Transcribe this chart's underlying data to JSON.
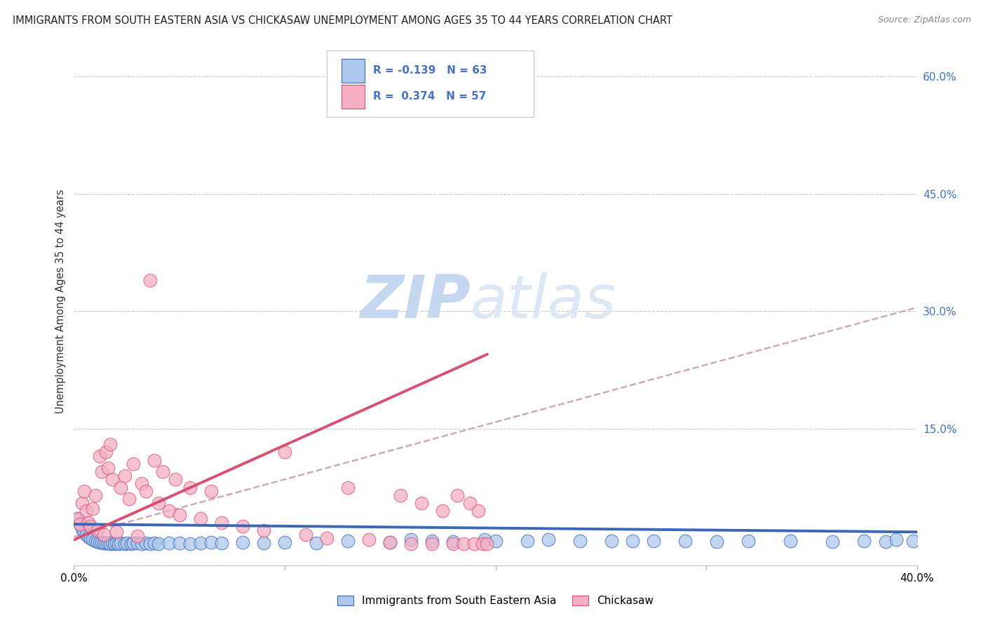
{
  "title": "IMMIGRANTS FROM SOUTH EASTERN ASIA VS CHICKASAW UNEMPLOYMENT AMONG AGES 35 TO 44 YEARS CORRELATION CHART",
  "source": "Source: ZipAtlas.com",
  "ylabel": "Unemployment Among Ages 35 to 44 years",
  "legend_label1": "Immigrants from South Eastern Asia",
  "legend_label2": "Chickasaw",
  "r1": -0.139,
  "n1": 63,
  "r2": 0.374,
  "n2": 57,
  "color_blue": "#adc8ed",
  "color_pink": "#f4afc4",
  "color_blue_line": "#3a68b8",
  "color_pink_line": "#d94f72",
  "color_dashed": "#c8a0b8",
  "background": "#ffffff",
  "watermark_color": "#dce8f5",
  "title_fontsize": 10.5,
  "source_fontsize": 9,
  "blue_scatter_x": [
    0.002,
    0.003,
    0.004,
    0.005,
    0.006,
    0.007,
    0.008,
    0.009,
    0.01,
    0.011,
    0.012,
    0.013,
    0.014,
    0.015,
    0.016,
    0.017,
    0.018,
    0.019,
    0.02,
    0.021,
    0.022,
    0.024,
    0.025,
    0.027,
    0.028,
    0.03,
    0.032,
    0.034,
    0.036,
    0.038,
    0.04,
    0.045,
    0.05,
    0.055,
    0.06,
    0.065,
    0.07,
    0.08,
    0.09,
    0.1,
    0.115,
    0.13,
    0.15,
    0.16,
    0.17,
    0.18,
    0.195,
    0.2,
    0.215,
    0.225,
    0.24,
    0.255,
    0.265,
    0.275,
    0.29,
    0.305,
    0.32,
    0.34,
    0.36,
    0.375,
    0.385,
    0.39,
    0.398
  ],
  "blue_scatter_y": [
    0.035,
    0.028,
    0.022,
    0.018,
    0.015,
    0.012,
    0.01,
    0.008,
    0.007,
    0.006,
    0.005,
    0.005,
    0.004,
    0.004,
    0.004,
    0.003,
    0.004,
    0.003,
    0.004,
    0.003,
    0.004,
    0.003,
    0.004,
    0.003,
    0.004,
    0.004,
    0.003,
    0.004,
    0.003,
    0.004,
    0.003,
    0.004,
    0.004,
    0.003,
    0.004,
    0.005,
    0.004,
    0.005,
    0.004,
    0.005,
    0.004,
    0.007,
    0.005,
    0.008,
    0.007,
    0.006,
    0.008,
    0.007,
    0.007,
    0.008,
    0.007,
    0.007,
    0.007,
    0.007,
    0.007,
    0.006,
    0.007,
    0.007,
    0.006,
    0.007,
    0.006,
    0.008,
    0.007
  ],
  "pink_scatter_x": [
    0.002,
    0.003,
    0.004,
    0.005,
    0.006,
    0.007,
    0.008,
    0.009,
    0.01,
    0.011,
    0.012,
    0.013,
    0.014,
    0.015,
    0.016,
    0.017,
    0.018,
    0.02,
    0.022,
    0.024,
    0.026,
    0.028,
    0.03,
    0.032,
    0.034,
    0.036,
    0.038,
    0.04,
    0.042,
    0.045,
    0.048,
    0.05,
    0.055,
    0.06,
    0.065,
    0.07,
    0.08,
    0.09,
    0.1,
    0.11,
    0.12,
    0.13,
    0.14,
    0.15,
    0.155,
    0.16,
    0.165,
    0.17,
    0.175,
    0.18,
    0.182,
    0.185,
    0.188,
    0.19,
    0.192,
    0.194,
    0.196
  ],
  "pink_scatter_y": [
    0.035,
    0.028,
    0.055,
    0.07,
    0.045,
    0.03,
    0.025,
    0.048,
    0.065,
    0.02,
    0.115,
    0.095,
    0.015,
    0.12,
    0.1,
    0.13,
    0.085,
    0.018,
    0.075,
    0.09,
    0.06,
    0.105,
    0.013,
    0.08,
    0.07,
    0.34,
    0.11,
    0.055,
    0.095,
    0.045,
    0.085,
    0.04,
    0.075,
    0.035,
    0.07,
    0.03,
    0.025,
    0.02,
    0.12,
    0.015,
    0.01,
    0.075,
    0.008,
    0.005,
    0.065,
    0.003,
    0.055,
    0.003,
    0.045,
    0.003,
    0.065,
    0.003,
    0.055,
    0.003,
    0.045,
    0.003,
    0.003
  ],
  "xlim": [
    0.0,
    0.4
  ],
  "ylim": [
    -0.025,
    0.65
  ],
  "blue_line_x": [
    0.0,
    0.4
  ],
  "blue_line_y": [
    0.028,
    0.018
  ],
  "pink_line_x": [
    0.0,
    0.196
  ],
  "pink_line_y": [
    0.008,
    0.245
  ],
  "dashed_line_x": [
    0.0,
    0.4
  ],
  "dashed_line_y": [
    0.012,
    0.305
  ],
  "right_ytick_vals": [
    0.6,
    0.45,
    0.3,
    0.15,
    0.0
  ],
  "right_ytick_labels": [
    "60.0%",
    "45.0%",
    "30.0%",
    "15.0%",
    ""
  ],
  "xtick_vals": [
    0.0,
    0.1,
    0.2,
    0.3,
    0.4
  ],
  "xtick_labels": [
    "0.0%",
    "",
    "",
    "",
    "40.0%"
  ]
}
